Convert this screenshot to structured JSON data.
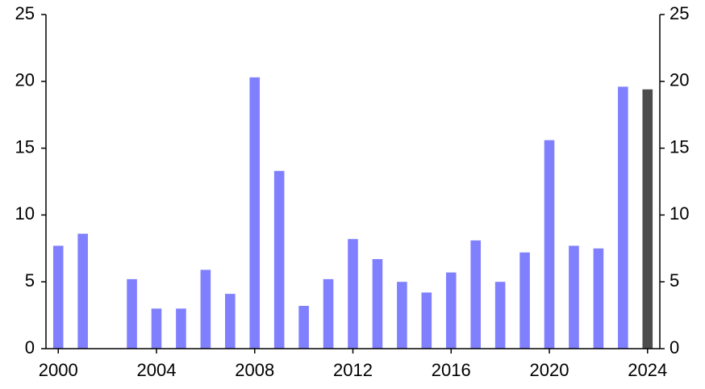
{
  "chart_data": {
    "type": "bar",
    "categories": [
      "2000",
      null,
      null,
      null,
      "2004",
      null,
      null,
      null,
      "2008",
      null,
      null,
      null,
      "2012",
      null,
      null,
      null,
      "2016",
      null,
      null,
      null,
      "2020",
      null,
      null,
      null,
      "2024"
    ],
    "values": [
      7.7,
      8.6,
      null,
      5.2,
      3.0,
      3.0,
      5.9,
      4.1,
      20.3,
      13.3,
      3.2,
      5.2,
      8.2,
      6.7,
      5.0,
      4.2,
      5.7,
      8.1,
      5.0,
      7.2,
      15.6,
      7.7,
      7.5,
      19.6,
      19.4
    ],
    "colors": [
      "#8080ff",
      "#8080ff",
      "#8080ff",
      "#8080ff",
      "#8080ff",
      "#8080ff",
      "#8080ff",
      "#8080ff",
      "#8080ff",
      "#8080ff",
      "#8080ff",
      "#8080ff",
      "#8080ff",
      "#8080ff",
      "#8080ff",
      "#8080ff",
      "#8080ff",
      "#8080ff",
      "#8080ff",
      "#8080ff",
      "#8080ff",
      "#8080ff",
      "#8080ff",
      "#8080ff",
      "#4d4d4d"
    ],
    "ylim": [
      0,
      25
    ],
    "yticks": [
      0,
      5,
      10,
      15,
      20,
      25
    ],
    "y2lim": [
      0,
      25
    ],
    "y2ticks": [
      0,
      5,
      10,
      15,
      20,
      25
    ],
    "grid": false
  }
}
